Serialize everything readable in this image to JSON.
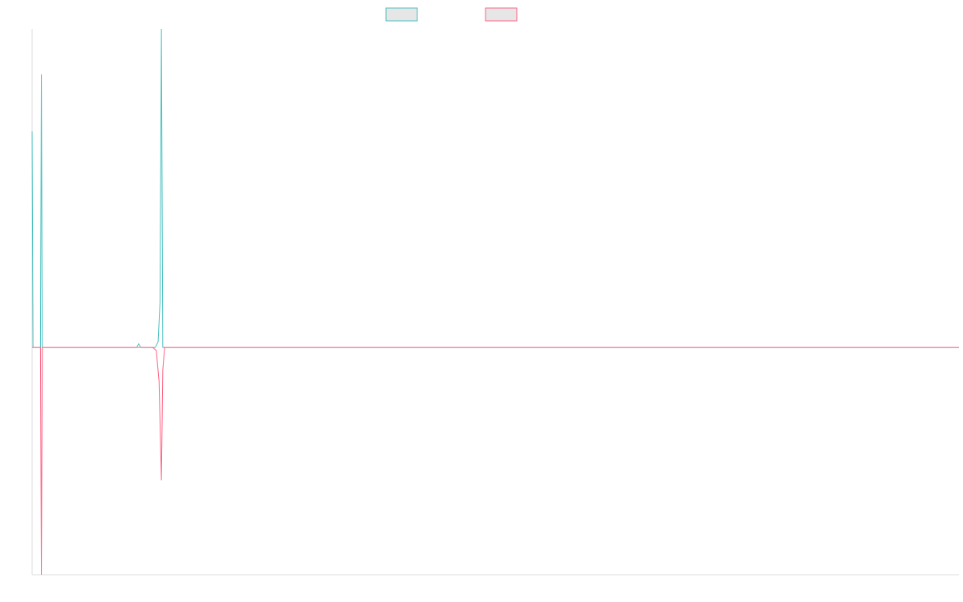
{
  "chart_data": {
    "type": "line",
    "title": "",
    "xlabel": "",
    "ylabel": "",
    "grid": false,
    "legend_position": "top",
    "x_range": [
      0,
      100
    ],
    "y_range": [
      -20,
      28
    ],
    "series": [
      {
        "color": "#4bc0c0",
        "points": [
          [
            0,
            19
          ],
          [
            0.1,
            0
          ],
          [
            0.9,
            0
          ],
          [
            1.0,
            24
          ],
          [
            1.1,
            0
          ],
          [
            11.3,
            0
          ],
          [
            11.5,
            0.3
          ],
          [
            11.7,
            0
          ],
          [
            13.3,
            0
          ],
          [
            13.6,
            0.5
          ],
          [
            13.8,
            4
          ],
          [
            13.95,
            28
          ],
          [
            14.1,
            0
          ],
          [
            100,
            0
          ]
        ]
      },
      {
        "color": "#ff6384",
        "points": [
          [
            0,
            0
          ],
          [
            0.9,
            0
          ],
          [
            1.0,
            -20
          ],
          [
            1.1,
            0
          ],
          [
            13.0,
            0
          ],
          [
            13.4,
            -0.3
          ],
          [
            13.7,
            -3
          ],
          [
            13.95,
            -11.7
          ],
          [
            14.1,
            -2
          ],
          [
            14.3,
            0
          ],
          [
            100,
            0
          ]
        ]
      }
    ],
    "legend": [
      {
        "color": "#4bc0c0",
        "fill": "#e6e6e6"
      },
      {
        "color": "#ff6384",
        "fill": "#e6e6e6"
      }
    ]
  }
}
